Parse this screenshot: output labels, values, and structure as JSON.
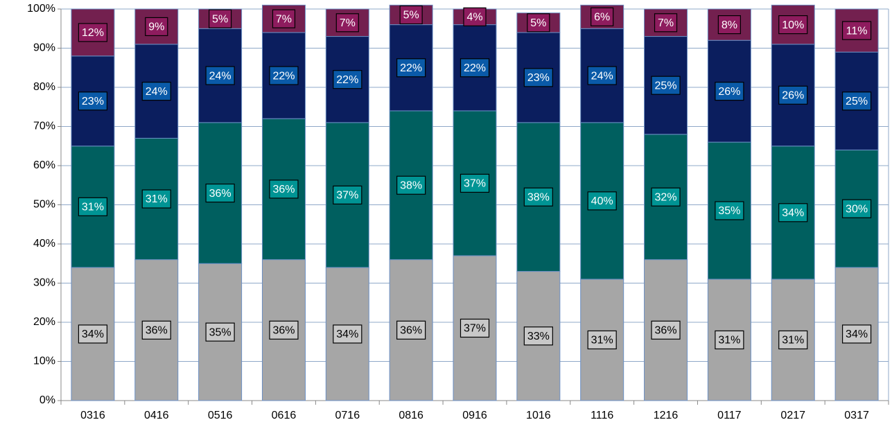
{
  "chart_data": {
    "type": "stacked_bar",
    "categories": [
      "0316",
      "0416",
      "0516",
      "0616",
      "0716",
      "0816",
      "0916",
      "1016",
      "1116",
      "1216",
      "0117",
      "0217",
      "0317"
    ],
    "series": [
      {
        "color": "#a6a6a6",
        "label_color": "#c8c8c8",
        "label_text_color": "#000000",
        "values": [
          34,
          36,
          35,
          36,
          34,
          36,
          37,
          33,
          31,
          36,
          31,
          31,
          34
        ],
        "value_labels": [
          "34%",
          "36%",
          "35%",
          "36%",
          "34%",
          "36%",
          "37%",
          "33%",
          "31%",
          "36%",
          "31%",
          "31%",
          "34%"
        ]
      },
      {
        "color": "#005f5f",
        "label_color": "#009494",
        "label_text_color": "#ffffff",
        "values": [
          31,
          31,
          36,
          36,
          37,
          38,
          37,
          38,
          40,
          32,
          35,
          34,
          30
        ],
        "value_labels": [
          "31%",
          "31%",
          "36%",
          "36%",
          "37%",
          "38%",
          "37%",
          "38%",
          "40%",
          "32%",
          "35%",
          "34%",
          "30%"
        ]
      },
      {
        "color": "#0b1e5e",
        "label_color": "#0a5aa8",
        "label_text_color": "#ffffff",
        "values": [
          23,
          24,
          24,
          22,
          22,
          22,
          22,
          23,
          24,
          25,
          26,
          26,
          25
        ],
        "value_labels": [
          "23%",
          "24%",
          "24%",
          "22%",
          "22%",
          "22%",
          "22%",
          "23%",
          "24%",
          "25%",
          "26%",
          "26%",
          "25%"
        ]
      },
      {
        "color": "#73204f",
        "label_color": "#8e1c5e",
        "label_text_color": "#ffffff",
        "values": [
          12,
          9,
          5,
          7,
          7,
          5,
          4,
          5,
          6,
          7,
          8,
          10,
          11
        ],
        "value_labels": [
          "12%",
          "9%",
          "5%",
          "7%",
          "7%",
          "5%",
          "4%",
          "5%",
          "6%",
          "7%",
          "8%",
          "10%",
          "11%"
        ]
      }
    ],
    "ylim": [
      0,
      100
    ],
    "yticks": [
      {
        "value": 0,
        "label": "0%"
      },
      {
        "value": 10,
        "label": "10%"
      },
      {
        "value": 20,
        "label": "20%"
      },
      {
        "value": 30,
        "label": "30%"
      },
      {
        "value": 40,
        "label": "40%"
      },
      {
        "value": 50,
        "label": "50%"
      },
      {
        "value": 60,
        "label": "60%"
      },
      {
        "value": 70,
        "label": "70%"
      },
      {
        "value": 80,
        "label": "80%"
      },
      {
        "value": 90,
        "label": "90%"
      },
      {
        "value": 100,
        "label": "100%"
      }
    ],
    "grid": true
  }
}
